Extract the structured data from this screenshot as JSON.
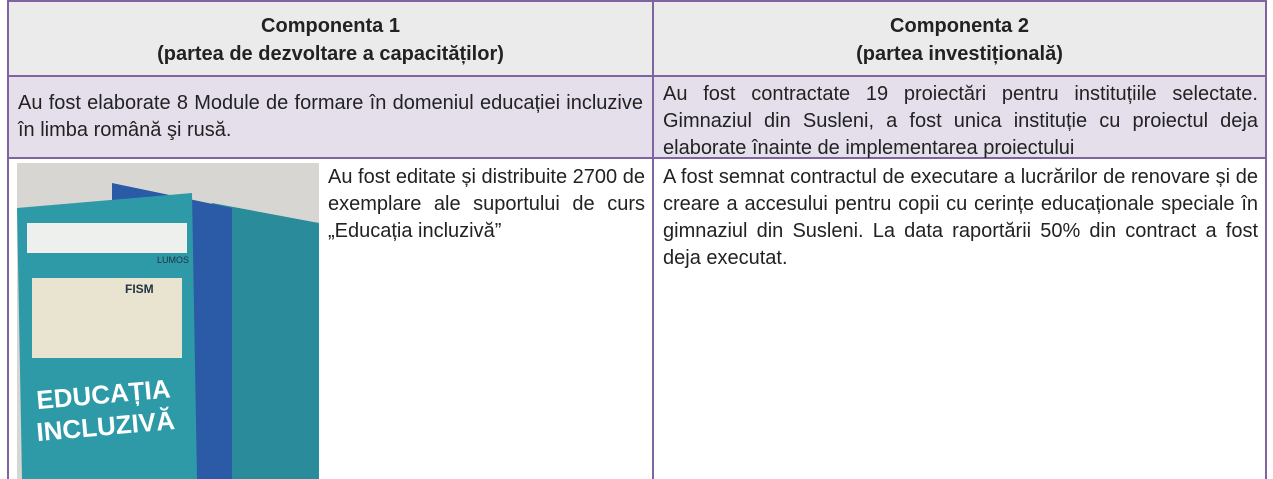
{
  "table": {
    "headers": [
      {
        "title": "Componenta 1",
        "subtitle": "(partea de dezvoltare a capacităților)"
      },
      {
        "title": "Componenta 2",
        "subtitle": "(partea investițională)"
      }
    ],
    "rows": [
      [
        "Au fost elaborate 8 Module de formare în domeniul educației incluzive în limba română şi rusă.",
        "Au fost contractate 19 proiectări pentru instituțiile selectate. Gimnaziul din Susleni, a fost unica instituție cu proiectul deja elaborate înainte de implementarea proiectului"
      ],
      [
        "Au fost editate și distribuite 2700 de exemplare ale suportului de curs „Educația incluzivă”",
        "A fost semnat contractul de executare a lucrărilor de renovare și de creare a accesului pentru copii cu cerințe educaționale speciale în gimnaziul din Susleni. La data raportării 50% din contract a fost deja executat."
      ]
    ]
  },
  "image": {
    "cover_title": [
      "EDUCAȚIA",
      "INCLUZIVĂ"
    ],
    "logos": [
      "FISM",
      "LUMOS"
    ]
  }
}
